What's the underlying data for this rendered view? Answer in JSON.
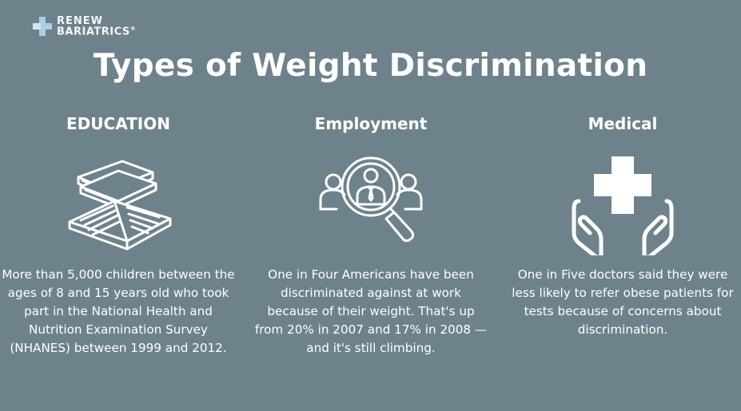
{
  "logo": {
    "line1": "RENEW",
    "line2": "BARIATRICS",
    "registered": "®"
  },
  "title": "Types of Weight Discrimination",
  "columns": [
    {
      "heading": "EDUCATION",
      "icon": "books-icon",
      "text": "More than 5,000 children between the ages of 8 and 15 years old who took part in the National Health and Nutrition Examination Survey (NHANES) between 1999 and 2012."
    },
    {
      "heading": "Employment",
      "icon": "magnifier-people-icon",
      "text": "One in Four Americans have been discriminated against at work because of their weight. That's up from 20% in 2007 and 17% in 2008 — and it's still climbing."
    },
    {
      "heading": "Medical",
      "icon": "hands-medical-cross-icon",
      "text": "One in Five doctors said they were less likely to refer obese patients for tests because of concerns about discrimination."
    }
  ]
}
